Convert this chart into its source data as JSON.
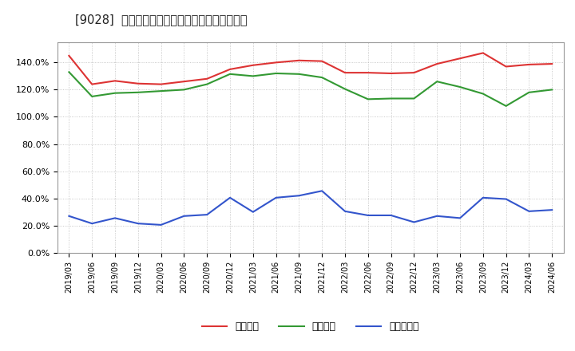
{
  "title": "[9028]  流動比率、当座比率、現預金比率の推移",
  "dates": [
    "2019/03",
    "2019/06",
    "2019/09",
    "2019/12",
    "2020/03",
    "2020/06",
    "2020/09",
    "2020/12",
    "2021/03",
    "2021/06",
    "2021/09",
    "2021/12",
    "2022/03",
    "2022/06",
    "2022/09",
    "2022/12",
    "2023/03",
    "2023/06",
    "2023/09",
    "2023/12",
    "2024/03",
    "2024/06"
  ],
  "ryudo": [
    145.0,
    124.0,
    126.5,
    124.5,
    124.0,
    126.0,
    128.0,
    135.0,
    138.0,
    140.0,
    141.5,
    141.0,
    132.5,
    132.5,
    132.0,
    132.5,
    139.0,
    143.0,
    147.0,
    137.0,
    138.5,
    139.0
  ],
  "toza": [
    133.0,
    115.0,
    117.5,
    118.0,
    119.0,
    120.0,
    124.0,
    131.5,
    130.0,
    132.0,
    131.5,
    129.0,
    120.5,
    113.0,
    113.5,
    113.5,
    126.0,
    122.0,
    117.0,
    108.0,
    118.0,
    120.0
  ],
  "genyo": [
    27.0,
    21.5,
    25.5,
    21.5,
    20.5,
    27.0,
    28.0,
    40.5,
    30.0,
    40.5,
    42.0,
    45.5,
    30.5,
    27.5,
    27.5,
    22.5,
    27.0,
    25.5,
    40.5,
    39.5,
    30.5,
    31.5
  ],
  "ryudo_color": "#dd3333",
  "toza_color": "#339933",
  "genyo_color": "#3355cc",
  "legend_labels": [
    "流動比率",
    "当座比率",
    "現預金比率"
  ],
  "ylim": [
    0,
    155
  ],
  "yticks": [
    0.0,
    20.0,
    40.0,
    60.0,
    80.0,
    100.0,
    120.0,
    140.0
  ],
  "background_color": "#ffffff",
  "grid_color": "#bbbbbb",
  "title_prefix": "[9028]",
  "title_main": "流動比率、当座比率、現預金比率の推移"
}
